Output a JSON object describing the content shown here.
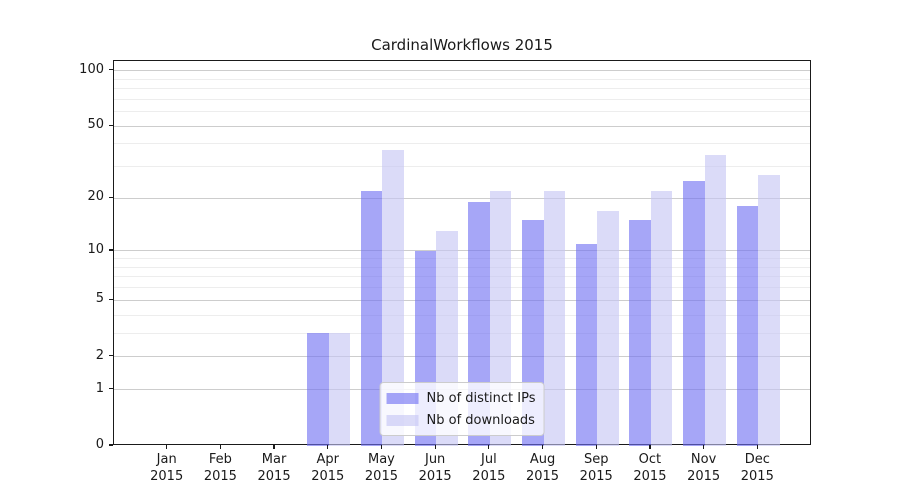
{
  "title": "CardinalWorkflows 2015",
  "chart_data": {
    "type": "bar",
    "title": "CardinalWorkflows 2015",
    "categories": [
      "Jan 2015",
      "Feb 2015",
      "Mar 2015",
      "Apr 2015",
      "May 2015",
      "Jun 2015",
      "Jul 2015",
      "Aug 2015",
      "Sep 2015",
      "Oct 2015",
      "Nov 2015",
      "Dec 2015"
    ],
    "series": [
      {
        "name": "Nb of distinct IPs",
        "color": "rgba(111,111,242,0.62)",
        "values": [
          0,
          0,
          0,
          3,
          22,
          10,
          19,
          15,
          11,
          15,
          25,
          18
        ]
      },
      {
        "name": "Nb of downloads",
        "color": "rgba(197,197,244,0.62)",
        "values": [
          0,
          0,
          0,
          3,
          37,
          13,
          22,
          22,
          17,
          22,
          35,
          27
        ]
      }
    ],
    "xlabel": "",
    "ylabel": "",
    "yscale": "log10(1+x)",
    "yticks": [
      0,
      1,
      2,
      5,
      10,
      20,
      50,
      100
    ],
    "yticks_minor": [
      3,
      4,
      6,
      7,
      8,
      9,
      30,
      40,
      60,
      70,
      80,
      90
    ],
    "ylim": [
      0,
      112
    ],
    "grid": "on",
    "legend_position": "lower center",
    "colors": {
      "bar_ips_solid": "#a6a6f7",
      "bar_downloads_solid": "#dbdbf8",
      "grid_major": "#cdcdcd",
      "grid_minor": "#ededed",
      "spine": "#1a1a1a",
      "text": "#1a1a1a",
      "legend_bg": "rgba(255,255,255,0.8)",
      "legend_border": "#cccccc"
    }
  }
}
